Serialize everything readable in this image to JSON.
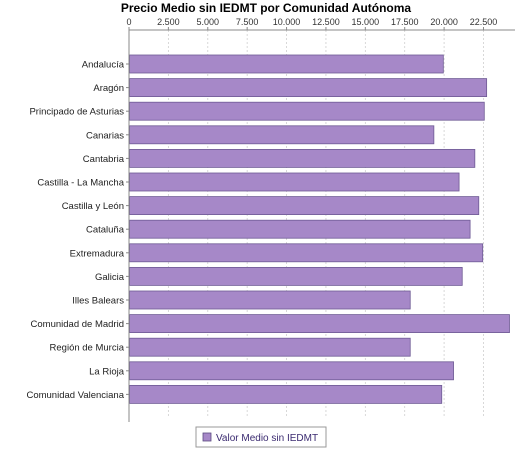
{
  "chart_data": {
    "type": "bar",
    "orientation": "horizontal",
    "title": "Precio Medio sin IEDMT por Comunidad Autónoma",
    "xlim": [
      0,
      24500
    ],
    "x_ticks": [
      0,
      2500,
      5000,
      7500,
      10000,
      12500,
      15000,
      17500,
      20000,
      22500
    ],
    "x_tick_labels": [
      "0",
      "2.500",
      "5.000",
      "7.500",
      "10.000",
      "12.500",
      "15.000",
      "17.500",
      "20.000",
      "22.500"
    ],
    "x_axis_position": "top",
    "grid": "vertical-dashed",
    "legend_position": "bottom",
    "categories": [
      "Andalucía",
      "Aragón",
      "Principado de Asturias",
      "Canarias",
      "Cantabria",
      "Castilla - La Mancha",
      "Castilla y León",
      "Cataluña",
      "Extremadura",
      "Galicia",
      "Illes Balears",
      "Comunidad de Madrid",
      "Región de Murcia",
      "La Rioja",
      "Comunidad Valenciana"
    ],
    "series": [
      {
        "name": "Valor Medio sin IEDMT",
        "color": "#a688c8",
        "values": [
          19950,
          22700,
          22550,
          19350,
          21950,
          20950,
          22200,
          21650,
          22450,
          21150,
          17850,
          24150,
          17850,
          20600,
          19850
        ]
      }
    ]
  }
}
